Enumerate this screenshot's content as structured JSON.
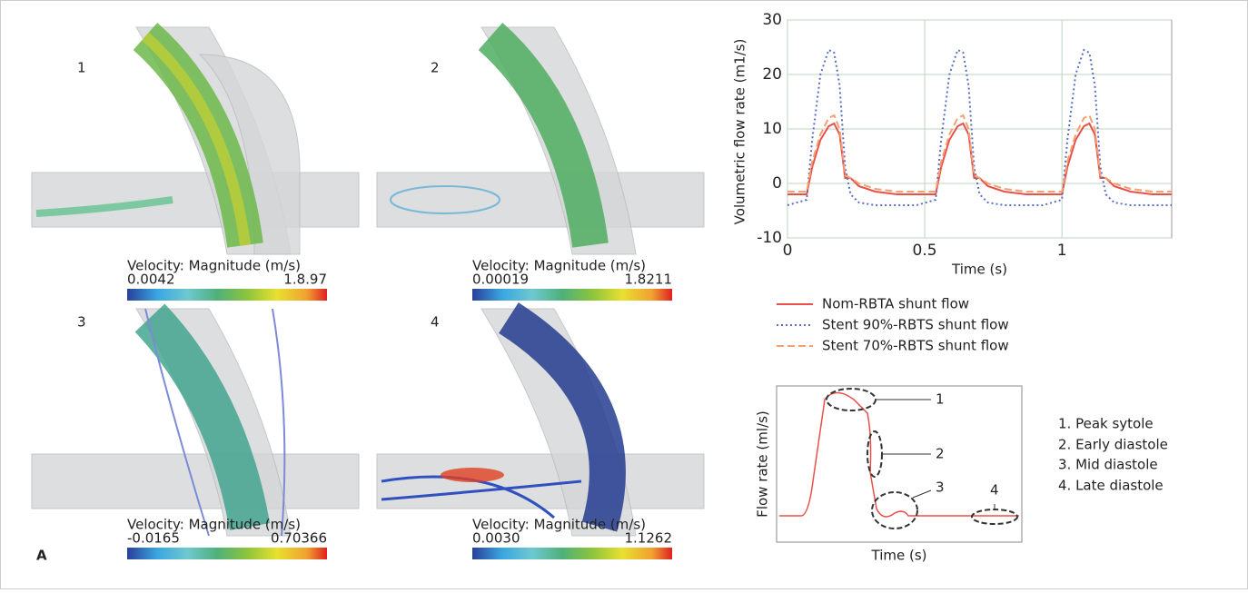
{
  "panels": [
    {
      "number": "1",
      "colorbar_title": "Velocity: Magnitude (m/s)",
      "min": "0.0042",
      "max": "1.8.97"
    },
    {
      "number": "2",
      "colorbar_title": "Velocity: Magnitude (m/s)",
      "min": "0.00019",
      "max": "1.8211"
    },
    {
      "number": "3",
      "colorbar_title": "Velocity: Magnitude (m/s)",
      "min": "-0.0165",
      "max": "0.70366"
    },
    {
      "number": "4",
      "colorbar_title": "Velocity: Magnitude (m/s)",
      "min": "0.0030",
      "max": "1.1262"
    }
  ],
  "panel_label": "A",
  "chart_data": {
    "type": "line",
    "ylabel": "Volumetric flow rate (m1/s)",
    "xlabel": "Time (s)",
    "x": [
      0,
      0.07,
      0.09,
      0.12,
      0.15,
      0.17,
      0.19,
      0.21,
      0.23,
      0.26,
      0.32,
      0.4,
      0.47,
      0.54,
      0.56,
      0.59,
      0.62,
      0.64,
      0.66,
      0.68,
      0.7,
      0.73,
      0.79,
      0.87,
      0.93,
      1.0,
      1.02,
      1.05,
      1.08,
      1.1,
      1.12,
      1.14,
      1.16,
      1.19,
      1.25,
      1.33,
      1.4
    ],
    "series": [
      {
        "name": "Nom-RBTA shunt flow",
        "color": "#e8504a",
        "style": "solid",
        "values": [
          -2,
          -2,
          3,
          8,
          10.5,
          11,
          9,
          1,
          1,
          -0.5,
          -1.5,
          -2,
          -2,
          -2,
          3,
          8,
          10.5,
          11,
          9,
          1,
          1,
          -0.5,
          -1.5,
          -2,
          -2,
          -2,
          3,
          8,
          10.5,
          11,
          9,
          1,
          1,
          -0.5,
          -1.5,
          -2,
          -2
        ]
      },
      {
        "name": "Stent 90%-RBTS shunt flow",
        "color": "#5a6fc4",
        "style": "dotted",
        "values": [
          -4,
          -3,
          8,
          20,
          24.5,
          24,
          18,
          3,
          -2,
          -3.5,
          -4,
          -4,
          -4,
          -3,
          8,
          20,
          24.5,
          24,
          18,
          3,
          -2,
          -3.5,
          -4,
          -4,
          -4,
          -3,
          8,
          20,
          24.5,
          24,
          18,
          3,
          -2,
          -3.5,
          -4,
          -4,
          -4
        ]
      },
      {
        "name": "Stent 70%-RBTS shunt flow",
        "color": "#f4a070",
        "style": "dashed",
        "values": [
          -1.5,
          -1.5,
          4,
          9,
          12,
          12.5,
          10,
          1.5,
          1,
          0,
          -1,
          -1.5,
          -1.5,
          -1.5,
          4,
          9,
          12,
          12.5,
          10,
          1.5,
          1,
          0,
          -1,
          -1.5,
          -1.5,
          -1.5,
          4,
          9,
          12,
          12.5,
          10,
          1.5,
          1,
          0,
          -1,
          -1.5,
          -1.5
        ]
      }
    ],
    "xlim": [
      0,
      1.4
    ],
    "ylim": [
      -10,
      30
    ],
    "xticks": [
      0,
      0.5,
      1
    ],
    "yticks": [
      -10,
      0,
      10,
      20,
      30
    ],
    "grid": true
  },
  "schematic": {
    "ylabel": "Flow rate (ml/s)",
    "xlabel": "Time (s)",
    "markers": [
      "1",
      "2",
      "3",
      "4"
    ],
    "phases": [
      "1. Peak sytole",
      "2. Early diastole",
      "3. Mid diastole",
      "4. Late diastole"
    ]
  }
}
